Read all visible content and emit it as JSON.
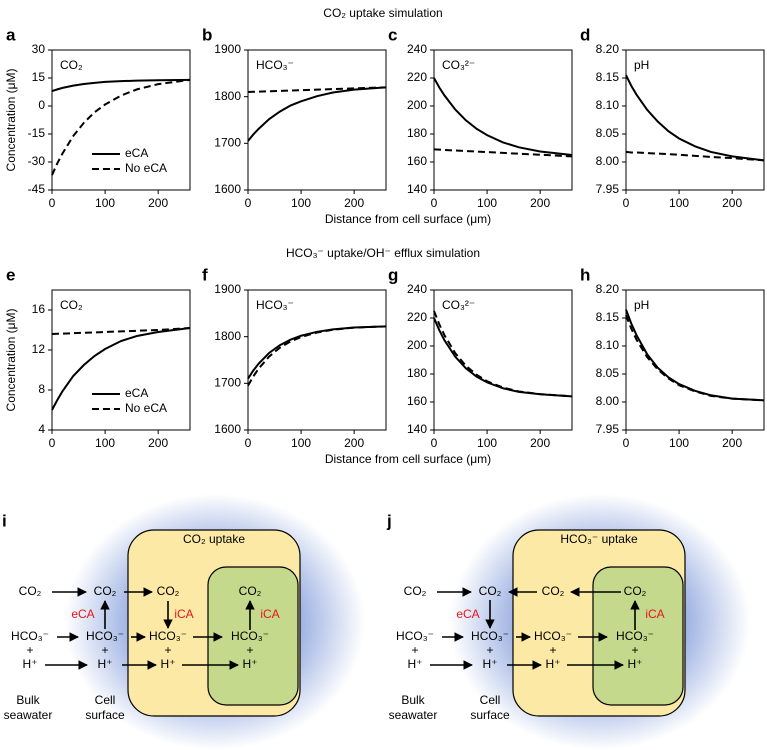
{
  "rows": [
    {
      "title": "CO₂ uptake simulation",
      "xlabel": "Distance from cell surface (μm)",
      "ylabel": "Concentration (μM)"
    },
    {
      "title": "HCO₃⁻ uptake/OH⁻ efflux simulation",
      "xlabel": "Distance from cell surface (μm)",
      "ylabel": "Concentration (μM)"
    }
  ],
  "chart_data": [
    {
      "type": "line",
      "panel": "a",
      "label": "CO₂",
      "x": [
        0,
        10,
        20,
        40,
        60,
        80,
        100,
        130,
        160,
        200,
        260
      ],
      "xlim": [
        0,
        260
      ],
      "xticks": [
        0,
        100,
        200
      ],
      "ylim": [
        -45,
        30
      ],
      "yticks": [
        -45,
        -30,
        -15,
        0,
        15,
        30
      ],
      "legend": "lower right",
      "series": [
        {
          "name": "eCA",
          "color": "#000000",
          "dash": "solid",
          "values": [
            8,
            8.9,
            9.7,
            10.9,
            11.8,
            12.4,
            12.9,
            13.3,
            13.6,
            13.8,
            14
          ]
        },
        {
          "name": "No eCA",
          "color": "#000000",
          "dash": "dashed",
          "values": [
            -37,
            -30.7,
            -25.3,
            -16.1,
            -9.0,
            -3.4,
            0.8,
            5.6,
            8.9,
            11.7,
            14
          ]
        }
      ]
    },
    {
      "type": "line",
      "panel": "b",
      "label": "HCO₃⁻",
      "x": [
        0,
        10,
        20,
        40,
        60,
        80,
        100,
        130,
        160,
        200,
        260
      ],
      "xlim": [
        0,
        260
      ],
      "xticks": [
        0,
        100,
        200
      ],
      "ylim": [
        1600,
        1900
      ],
      "yticks": [
        1600,
        1700,
        1800,
        1900
      ],
      "series": [
        {
          "color": "#000000",
          "dash": "solid",
          "values": [
            1705,
            1719,
            1731,
            1752,
            1768,
            1781,
            1790,
            1801,
            1809,
            1815,
            1820
          ]
        },
        {
          "color": "#000000",
          "dash": "dashed",
          "values": [
            1810,
            1810.4,
            1810.8,
            1811.5,
            1812.3,
            1813,
            1813.8,
            1815,
            1816.2,
            1817.7,
            1820
          ]
        }
      ]
    },
    {
      "type": "line",
      "panel": "c",
      "label": "CO₃²⁻",
      "x": [
        0,
        10,
        20,
        40,
        60,
        80,
        100,
        130,
        160,
        200,
        260
      ],
      "xlim": [
        0,
        260
      ],
      "xticks": [
        0,
        100,
        200
      ],
      "ylim": [
        140,
        240
      ],
      "yticks": [
        140,
        160,
        180,
        200,
        220,
        240
      ],
      "series": [
        {
          "color": "#000000",
          "dash": "solid",
          "values": [
            220,
            213.2,
            207.4,
            197.5,
            189.8,
            183.8,
            179.2,
            174,
            170.5,
            167.5,
            165
          ]
        },
        {
          "color": "#000000",
          "dash": "dashed",
          "values": [
            169,
            168.8,
            168.6,
            168.2,
            167.8,
            167.5,
            167.1,
            166.5,
            165.9,
            165.2,
            164
          ]
        }
      ]
    },
    {
      "type": "line",
      "panel": "d",
      "label": "pH",
      "x": [
        0,
        10,
        20,
        40,
        60,
        80,
        100,
        130,
        160,
        200,
        260
      ],
      "xlim": [
        0,
        260
      ],
      "xticks": [
        0,
        100,
        200
      ],
      "ylim": [
        7.95,
        8.2
      ],
      "yticks": [
        7.95,
        {
          "value": 8,
          "label": "8.00"
        },
        8.05,
        {
          "value": 8.1,
          "label": "8.10"
        },
        8.15,
        {
          "value": 8.2,
          "label": "8.20"
        }
      ],
      "series": [
        {
          "color": "#000000",
          "dash": "solid",
          "values": [
            8.155,
            8.136,
            8.12,
            8.093,
            8.072,
            8.055,
            8.042,
            8.028,
            8.018,
            8.01,
            8.003
          ]
        },
        {
          "color": "#000000",
          "dash": "dashed",
          "values": [
            8.018,
            8.017,
            8.017,
            8.016,
            8.015,
            8.014,
            8.013,
            8.011,
            8.009,
            8.007,
            8.003
          ]
        }
      ]
    },
    {
      "type": "line",
      "panel": "e",
      "label": "CO₂",
      "x": [
        0,
        10,
        20,
        40,
        60,
        80,
        100,
        130,
        160,
        200,
        260
      ],
      "xlim": [
        0,
        260
      ],
      "xticks": [
        0,
        100,
        200
      ],
      "ylim": [
        4,
        18
      ],
      "yticks": [
        4,
        8,
        12,
        16
      ],
      "legend": "lower right",
      "series": [
        {
          "name": "eCA",
          "color": "#000000",
          "dash": "solid",
          "values": [
            6,
            7.0,
            7.9,
            9.4,
            10.5,
            11.4,
            12.1,
            12.9,
            13.4,
            13.8,
            14.2
          ]
        },
        {
          "name": "No eCA",
          "color": "#000000",
          "dash": "dashed",
          "values": [
            13.6,
            13.62,
            13.64,
            13.68,
            13.72,
            13.76,
            13.8,
            13.86,
            13.92,
            14.0,
            14.2
          ]
        }
      ]
    },
    {
      "type": "line",
      "panel": "f",
      "label": "HCO₃⁻",
      "x": [
        0,
        10,
        20,
        40,
        60,
        80,
        100,
        130,
        160,
        200,
        260
      ],
      "xlim": [
        0,
        260
      ],
      "xticks": [
        0,
        100,
        200
      ],
      "ylim": [
        1600,
        1900
      ],
      "yticks": [
        1600,
        1700,
        1800,
        1900
      ],
      "series": [
        {
          "color": "#000000",
          "dash": "solid",
          "values": [
            1710,
            1727.5,
            1742.1,
            1765.3,
            1781.7,
            1793.5,
            1802,
            1810.4,
            1815.6,
            1819.6,
            1822
          ]
        },
        {
          "color": "#000000",
          "dash": "dashed",
          "values": [
            1695,
            1714.8,
            1731.5,
            1757.6,
            1776.3,
            1789.7,
            1799.4,
            1808.9,
            1814.8,
            1819.4,
            1822
          ]
        }
      ]
    },
    {
      "type": "line",
      "panel": "g",
      "label": "CO₃²⁻",
      "x": [
        0,
        10,
        20,
        40,
        60,
        80,
        100,
        130,
        160,
        200,
        260
      ],
      "xlim": [
        0,
        260
      ],
      "xticks": [
        0,
        100,
        200
      ],
      "ylim": [
        140,
        240
      ],
      "yticks": [
        140,
        160,
        180,
        200,
        220,
        240
      ],
      "series": [
        {
          "color": "#000000",
          "dash": "solid",
          "values": [
            220,
            211.3,
            203.9,
            192.4,
            184.1,
            178.2,
            174,
            169.8,
            167.2,
            165.5,
            164
          ]
        },
        {
          "color": "#000000",
          "dash": "dashed",
          "values": [
            225,
            215.5,
            207.5,
            194.9,
            185.9,
            179.5,
            174.8,
            170.3,
            167.5,
            165.6,
            164
          ]
        }
      ]
    },
    {
      "type": "line",
      "panel": "h",
      "label": "pH",
      "x": [
        0,
        10,
        20,
        40,
        60,
        80,
        100,
        130,
        160,
        200,
        260
      ],
      "xlim": [
        0,
        260
      ],
      "xticks": [
        0,
        100,
        200
      ],
      "ylim": [
        7.95,
        8.2
      ],
      "yticks": [
        7.95,
        {
          "value": 8,
          "label": "8.00"
        },
        8.05,
        {
          "value": 8.1,
          "label": "8.10"
        },
        8.15,
        {
          "value": 8.2,
          "label": "8.20"
        }
      ],
      "series": [
        {
          "color": "#000000",
          "dash": "solid",
          "values": [
            8.165,
            8.14,
            8.119,
            8.085,
            8.061,
            8.044,
            8.032,
            8.02,
            8.012,
            8.006,
            8.003
          ]
        },
        {
          "color": "#000000",
          "dash": "dashed",
          "values": [
            8.155,
            8.131,
            8.111,
            8.08,
            8.058,
            8.042,
            8.03,
            8.019,
            8.011,
            8.006,
            8.003
          ]
        }
      ]
    }
  ],
  "diagrams": [
    {
      "panel": "i",
      "title": "CO₂ uptake",
      "bulk": [
        "CO₂",
        "HCO₃⁻",
        "+",
        "H⁺"
      ],
      "bulk_label": [
        "Bulk",
        "seawater"
      ],
      "surface": [
        "CO₂",
        "HCO₃⁻",
        "+",
        "H⁺"
      ],
      "surface_label": [
        "Cell",
        "surface"
      ],
      "surface_enzyme": "eCA",
      "cytoplasm": [
        "CO₂",
        "HCO₃⁻",
        "+",
        "H⁺"
      ],
      "cytoplasm_enzyme": "iCA",
      "chloroplast": [
        "CO₂",
        "HCO₃⁻",
        "+",
        "H⁺"
      ],
      "chloroplast_enzyme": "iCA"
    },
    {
      "panel": "j",
      "title": "HCO₃⁻ uptake",
      "bulk": [
        "CO₂",
        "HCO₃⁻",
        "+",
        "H⁺"
      ],
      "bulk_label": [
        "Bulk",
        "seawater"
      ],
      "surface": [
        "CO₂",
        "HCO₃⁻",
        "+",
        "H⁺"
      ],
      "surface_label": [
        "Cell",
        "surface"
      ],
      "surface_enzyme": "eCA",
      "cytoplasm": [
        "CO₂",
        "HCO₃⁻",
        "+",
        "H⁺"
      ],
      "chloroplast": [
        "CO₂",
        "HCO₃⁻",
        "+",
        "H⁺"
      ],
      "chloroplast_enzyme": "iCA"
    }
  ]
}
